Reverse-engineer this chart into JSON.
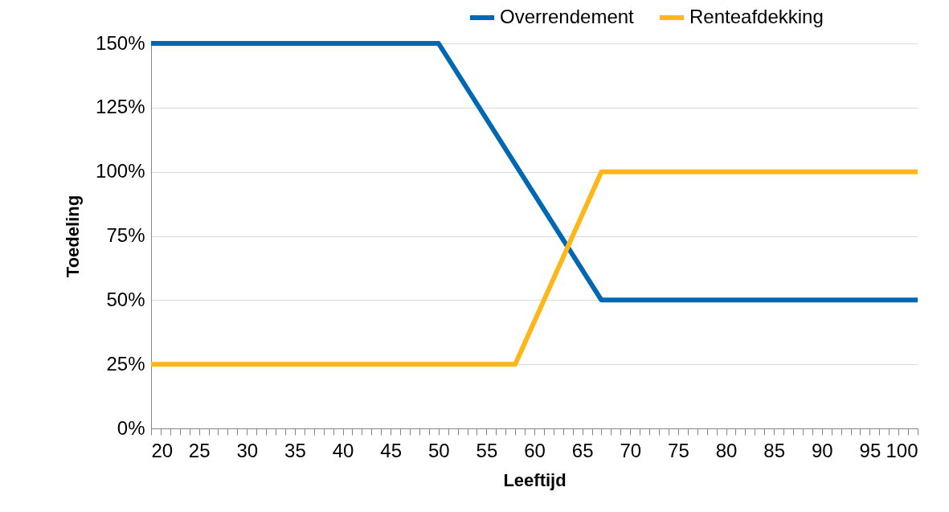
{
  "chart_data": {
    "type": "line",
    "xlabel": "Leeftijd",
    "ylabel": "Toedeling",
    "xlim": [
      20,
      100
    ],
    "xticks": [
      20,
      {
        "value": 21,
        "label": null
      },
      {
        "value": 22,
        "label": null
      },
      {
        "value": 23,
        "label": null
      },
      {
        "value": 24,
        "label": null
      },
      25,
      {
        "value": 26,
        "label": null
      },
      {
        "value": 27,
        "label": null
      },
      {
        "value": 28,
        "label": null
      },
      {
        "value": 29,
        "label": null
      },
      30,
      {
        "value": 31,
        "label": null
      },
      {
        "value": 32,
        "label": null
      },
      {
        "value": 33,
        "label": null
      },
      {
        "value": 34,
        "label": null
      },
      35,
      {
        "value": 36,
        "label": null
      },
      {
        "value": 37,
        "label": null
      },
      {
        "value": 38,
        "label": null
      },
      {
        "value": 39,
        "label": null
      },
      40,
      {
        "value": 41,
        "label": null
      },
      {
        "value": 42,
        "label": null
      },
      {
        "value": 43,
        "label": null
      },
      {
        "value": 44,
        "label": null
      },
      45,
      {
        "value": 46,
        "label": null
      },
      {
        "value": 47,
        "label": null
      },
      {
        "value": 48,
        "label": null
      },
      {
        "value": 49,
        "label": null
      },
      50,
      {
        "value": 51,
        "label": null
      },
      {
        "value": 52,
        "label": null
      },
      {
        "value": 53,
        "label": null
      },
      {
        "value": 54,
        "label": null
      },
      55,
      {
        "value": 56,
        "label": null
      },
      {
        "value": 57,
        "label": null
      },
      {
        "value": 58,
        "label": null
      },
      {
        "value": 59,
        "label": null
      },
      60,
      {
        "value": 61,
        "label": null
      },
      {
        "value": 62,
        "label": null
      },
      {
        "value": 63,
        "label": null
      },
      {
        "value": 64,
        "label": null
      },
      65,
      {
        "value": 66,
        "label": null
      },
      {
        "value": 67,
        "label": null
      },
      {
        "value": 68,
        "label": null
      },
      {
        "value": 69,
        "label": null
      },
      70,
      {
        "value": 71,
        "label": null
      },
      {
        "value": 72,
        "label": null
      },
      {
        "value": 73,
        "label": null
      },
      {
        "value": 74,
        "label": null
      },
      75,
      {
        "value": 76,
        "label": null
      },
      {
        "value": 77,
        "label": null
      },
      {
        "value": 78,
        "label": null
      },
      {
        "value": 79,
        "label": null
      },
      80,
      {
        "value": 81,
        "label": null
      },
      {
        "value": 82,
        "label": null
      },
      {
        "value": 83,
        "label": null
      },
      {
        "value": 84,
        "label": null
      },
      85,
      {
        "value": 86,
        "label": null
      },
      {
        "value": 87,
        "label": null
      },
      {
        "value": 88,
        "label": null
      },
      {
        "value": 89,
        "label": null
      },
      90,
      {
        "value": 91,
        "label": null
      },
      {
        "value": 92,
        "label": null
      },
      {
        "value": 93,
        "label": null
      },
      {
        "value": 94,
        "label": null
      },
      95,
      {
        "value": 96,
        "label": null
      },
      {
        "value": 97,
        "label": null
      },
      {
        "value": 98,
        "label": null
      },
      {
        "value": 99,
        "label": null
      },
      100
    ],
    "ylim": [
      0,
      150
    ],
    "yticks": [
      {
        "value": 0,
        "label": "0%"
      },
      {
        "value": 25,
        "label": "25%"
      },
      {
        "value": 50,
        "label": "50%"
      },
      {
        "value": 75,
        "label": "75%"
      },
      {
        "value": 100,
        "label": "100%"
      },
      {
        "value": 125,
        "label": "125%"
      },
      {
        "value": 150,
        "label": "150%"
      }
    ],
    "grid": "y",
    "legend": "top right",
    "series": [
      {
        "name": "Overrendement",
        "color": "#0067b1",
        "x": [
          20,
          50,
          67,
          100
        ],
        "values": [
          150,
          150,
          50,
          50
        ]
      },
      {
        "name": "Renteafdekking",
        "color": "#fdb71a",
        "x": [
          20,
          58,
          67,
          100
        ],
        "values": [
          25,
          25,
          100,
          100
        ]
      }
    ]
  }
}
